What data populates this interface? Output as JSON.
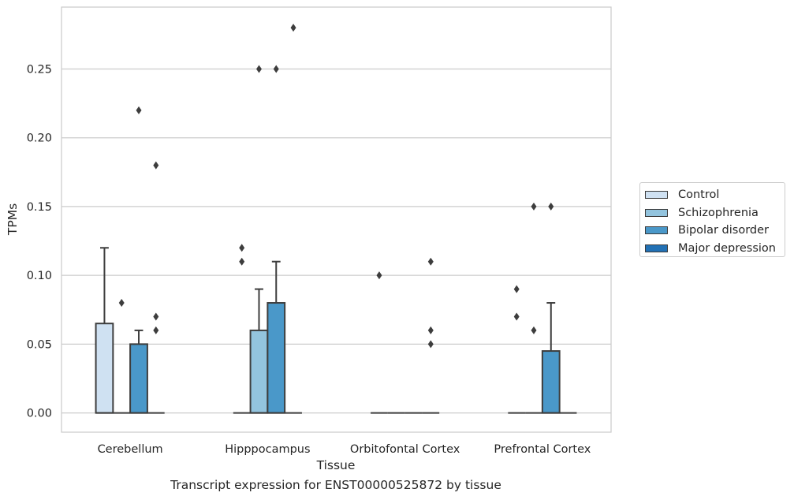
{
  "chart_data": {
    "type": "box",
    "title": "Transcript expression for ENST00000525872 by tissue",
    "xlabel": "Tissue",
    "ylabel": "TPMs",
    "ylim": [
      -0.014,
      0.295
    ],
    "yticks": [
      "0.00",
      "0.05",
      "0.10",
      "0.15",
      "0.20",
      "0.25"
    ],
    "grid": "horizontal",
    "legend_position": "right",
    "categories": [
      "Cerebellum",
      "Hipppocampus",
      "Orbitofontal Cortex",
      "Prefrontal Cortex"
    ],
    "series": [
      {
        "name": "Control",
        "color": "#cfe1f2",
        "boxes": [
          {
            "q1": 0,
            "median": 0,
            "q3": 0.065,
            "whisker_low": 0,
            "whisker_high": 0.12,
            "outliers": []
          },
          {
            "q1": 0,
            "median": 0,
            "q3": 0,
            "whisker_low": 0,
            "whisker_high": 0,
            "outliers": [
              0.11,
              0.12
            ]
          },
          {
            "q1": 0,
            "median": 0,
            "q3": 0,
            "whisker_low": 0,
            "whisker_high": 0,
            "outliers": [
              0.1
            ]
          },
          {
            "q1": 0,
            "median": 0,
            "q3": 0,
            "whisker_low": 0,
            "whisker_high": 0,
            "outliers": [
              0.07,
              0.09
            ]
          }
        ]
      },
      {
        "name": "Schizophrenia",
        "color": "#93c4de",
        "boxes": [
          {
            "q1": 0,
            "median": 0,
            "q3": 0,
            "whisker_low": 0,
            "whisker_high": 0,
            "outliers": [
              0.08
            ]
          },
          {
            "q1": 0,
            "median": 0,
            "q3": 0.06,
            "whisker_low": 0,
            "whisker_high": 0.09,
            "outliers": [
              0.25
            ]
          },
          {
            "q1": 0,
            "median": 0,
            "q3": 0,
            "whisker_low": 0,
            "whisker_high": 0,
            "outliers": []
          },
          {
            "q1": 0,
            "median": 0,
            "q3": 0,
            "whisker_low": 0,
            "whisker_high": 0,
            "outliers": [
              0.06,
              0.15
            ]
          }
        ]
      },
      {
        "name": "Bipolar disorder",
        "color": "#4a98c9",
        "boxes": [
          {
            "q1": 0,
            "median": 0,
            "q3": 0.05,
            "whisker_low": 0,
            "whisker_high": 0.06,
            "outliers": [
              0.22
            ]
          },
          {
            "q1": 0,
            "median": 0,
            "q3": 0.08,
            "whisker_low": 0,
            "whisker_high": 0.11,
            "outliers": [
              0.25
            ]
          },
          {
            "q1": 0,
            "median": 0,
            "q3": 0,
            "whisker_low": 0,
            "whisker_high": 0,
            "outliers": []
          },
          {
            "q1": 0,
            "median": 0,
            "q3": 0.045,
            "whisker_low": 0,
            "whisker_high": 0.08,
            "outliers": [
              0.15
            ]
          }
        ]
      },
      {
        "name": "Major depression",
        "color": "#2271b5",
        "boxes": [
          {
            "q1": 0,
            "median": 0,
            "q3": 0,
            "whisker_low": 0,
            "whisker_high": 0,
            "outliers": [
              0.06,
              0.07,
              0.18
            ]
          },
          {
            "q1": 0,
            "median": 0,
            "q3": 0,
            "whisker_low": 0,
            "whisker_high": 0,
            "outliers": [
              0.28
            ]
          },
          {
            "q1": 0,
            "median": 0,
            "q3": 0,
            "whisker_low": 0,
            "whisker_high": 0,
            "outliers": [
              0.05,
              0.06,
              0.11
            ]
          },
          {
            "q1": 0,
            "median": 0,
            "q3": 0,
            "whisker_low": 0,
            "whisker_high": 0,
            "outliers": []
          }
        ]
      }
    ]
  }
}
